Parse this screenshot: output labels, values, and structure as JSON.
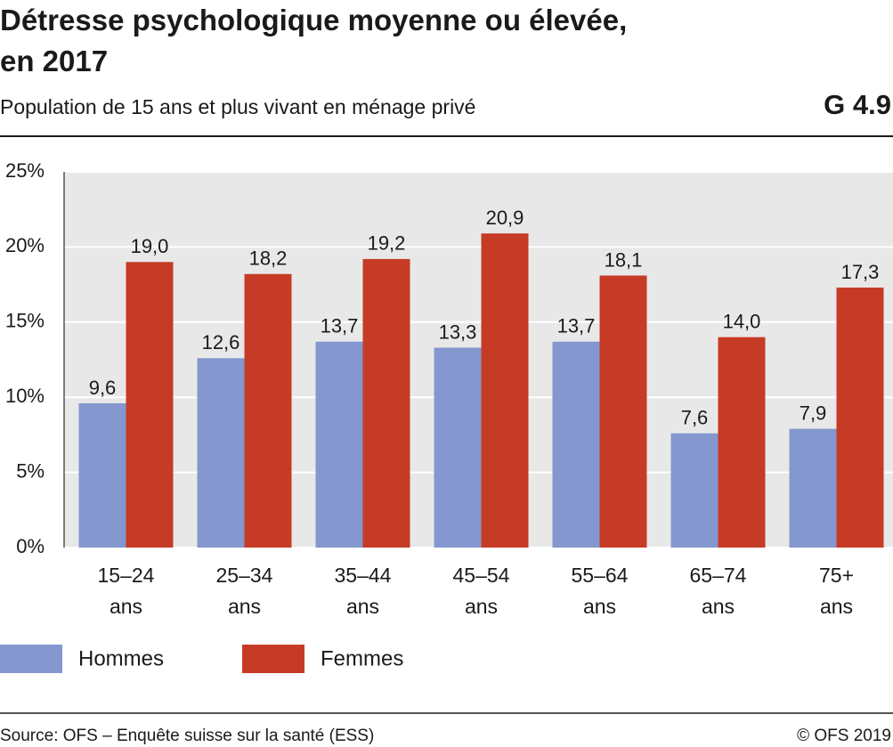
{
  "chart_data": {
    "type": "bar",
    "title": [
      "Détresse psychologique moyenne ou élevée,",
      "en 2017"
    ],
    "subtitle": "Population de 15 ans et plus vivant en ménage privé",
    "chart_id": "G 4.9",
    "categories": [
      "15–24 ans",
      "25–34 ans",
      "35–44 ans",
      "45–54 ans",
      "55–64 ans",
      "65–74 ans",
      "75+ ans"
    ],
    "series": [
      {
        "name": "Hommes",
        "color": "#8497cf",
        "values": [
          9.6,
          12.6,
          13.7,
          13.3,
          13.7,
          7.6,
          7.9
        ],
        "value_labels": [
          "9,6",
          "12,6",
          "13,7",
          "13,3",
          "13,7",
          "7,6",
          "7,9"
        ]
      },
      {
        "name": "Femmes",
        "color": "#c63b26",
        "values": [
          19.0,
          18.2,
          19.2,
          20.9,
          18.1,
          14.0,
          17.3
        ],
        "value_labels": [
          "19,0",
          "18,2",
          "19,2",
          "20,9",
          "18,1",
          "14,0",
          "17,3"
        ]
      }
    ],
    "ylim": [
      0,
      25
    ],
    "yticks": [
      {
        "value": 0,
        "label": "0%"
      },
      {
        "value": 5,
        "label": "5%"
      },
      {
        "value": 10,
        "label": "10%"
      },
      {
        "value": 15,
        "label": "15%"
      },
      {
        "value": 20,
        "label": "20%"
      },
      {
        "value": 25,
        "label": "25%"
      }
    ],
    "grid": true,
    "source": "Source: OFS – Enquête suisse sur la santé (ESS)",
    "copyright": "© OFS 2019"
  }
}
